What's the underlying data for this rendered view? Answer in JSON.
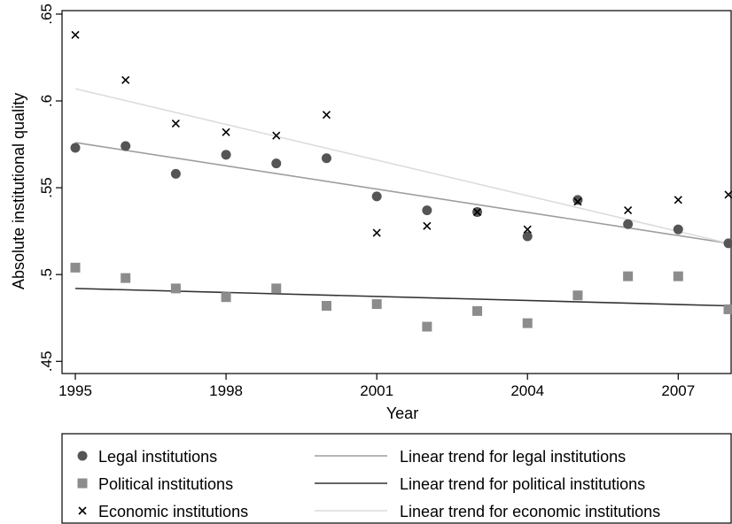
{
  "chart_data": {
    "type": "scatter",
    "xlabel": "Year",
    "ylabel": "Absolute institutional quality",
    "xlim": [
      1995,
      2008
    ],
    "ylim": [
      0.443,
      0.652
    ],
    "xticks": [
      1995,
      1998,
      2001,
      2004,
      2007
    ],
    "xtick_labels": [
      "1995",
      "1998",
      "2001",
      "2004",
      "2007"
    ],
    "yticks": [
      0.45,
      0.5,
      0.55,
      0.6,
      0.65
    ],
    "ytick_labels": [
      ".45",
      ".5",
      ".55",
      ".6",
      ".65"
    ],
    "grid": false,
    "legend_position": "bottom",
    "x": [
      1995,
      1996,
      1997,
      1998,
      1999,
      2000,
      2001,
      2002,
      2003,
      2004,
      2005,
      2006,
      2007,
      2008
    ],
    "series": [
      {
        "name": "Legal institutions",
        "kind": "points",
        "marker": "circle",
        "color": "#555555",
        "values": [
          0.573,
          0.574,
          0.558,
          0.569,
          0.564,
          0.567,
          0.545,
          0.537,
          0.536,
          0.522,
          0.543,
          0.529,
          0.526,
          0.518
        ]
      },
      {
        "name": "Political institutions",
        "kind": "points",
        "marker": "square",
        "color": "#8c8c8c",
        "values": [
          0.504,
          0.498,
          0.492,
          0.487,
          0.492,
          0.482,
          0.483,
          0.47,
          0.479,
          0.472,
          0.488,
          0.499,
          0.499,
          0.48
        ]
      },
      {
        "name": "Economic institutions",
        "kind": "points",
        "marker": "x",
        "color": "#000000",
        "values": [
          0.638,
          0.612,
          0.587,
          0.582,
          0.58,
          0.592,
          0.524,
          0.528,
          0.536,
          0.526,
          0.542,
          0.537,
          0.543,
          0.546
        ]
      },
      {
        "name": "Linear trend for legal institutions",
        "kind": "line",
        "color": "#9e9e9e",
        "x": [
          1995,
          2008
        ],
        "values": [
          0.576,
          0.518
        ]
      },
      {
        "name": "Linear trend for political institutions",
        "kind": "line",
        "color": "#333333",
        "x": [
          1995,
          2008
        ],
        "values": [
          0.492,
          0.482
        ]
      },
      {
        "name": "Linear trend for economic institutions",
        "kind": "line",
        "color": "#dcdcdc",
        "x": [
          1995,
          2008
        ],
        "values": [
          0.607,
          0.518
        ]
      }
    ]
  }
}
